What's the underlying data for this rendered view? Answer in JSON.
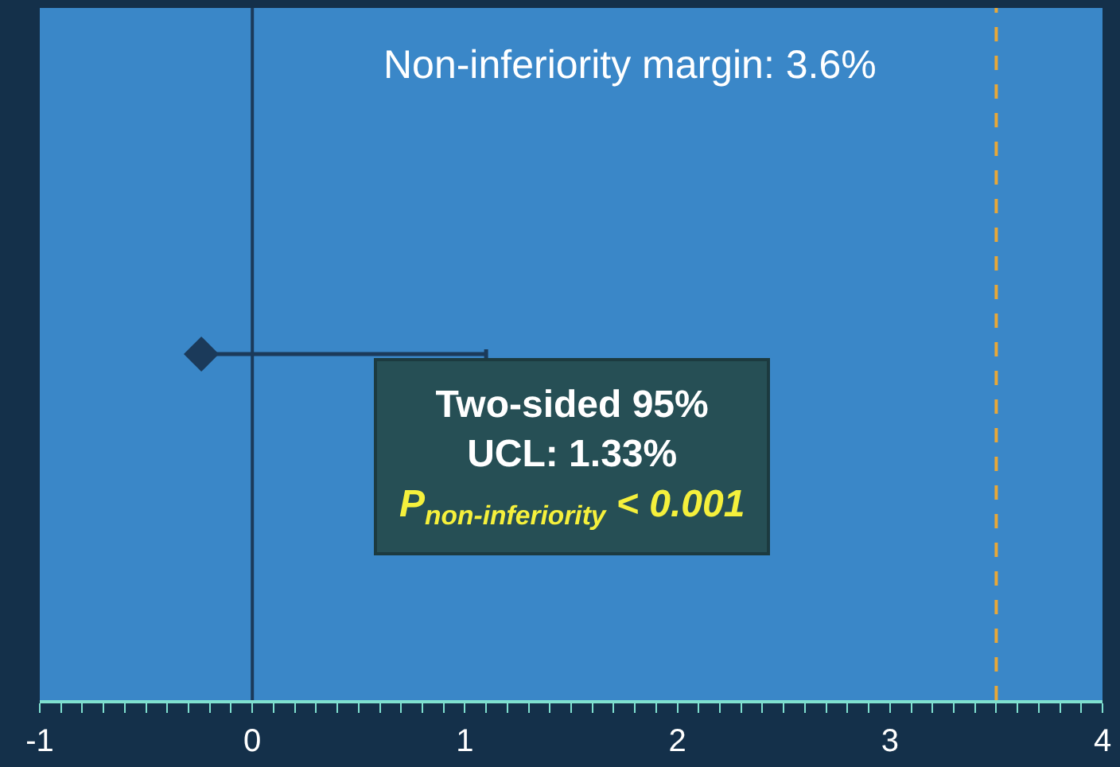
{
  "chart_data": {
    "type": "scatter",
    "categories": [
      null
    ],
    "orientation": "horizontal",
    "series": [
      {
        "color": "#1b3a5a",
        "values": [
          -0.24
        ],
        "errors": [
          [
            -0.24,
            1.1
          ]
        ]
      }
    ],
    "xlim": [
      -1,
      4
    ],
    "xticks": [
      -1,
      {
        "value": -0.9,
        "label": null
      },
      {
        "value": -0.8,
        "label": null
      },
      {
        "value": -0.7,
        "label": null
      },
      {
        "value": -0.6,
        "label": null
      },
      {
        "value": -0.5,
        "label": null
      },
      {
        "value": -0.4,
        "label": null
      },
      {
        "value": -0.3,
        "label": null
      },
      {
        "value": -0.2,
        "label": null
      },
      {
        "value": -0.1,
        "label": null
      },
      0,
      {
        "value": 0.1,
        "label": null
      },
      {
        "value": 0.2,
        "label": null
      },
      {
        "value": 0.3,
        "label": null
      },
      {
        "value": 0.4,
        "label": null
      },
      {
        "value": 0.5,
        "label": null
      },
      {
        "value": 0.6,
        "label": null
      },
      {
        "value": 0.7,
        "label": null
      },
      {
        "value": 0.8,
        "label": null
      },
      {
        "value": 0.9,
        "label": null
      },
      1,
      {
        "value": 1.1,
        "label": null
      },
      {
        "value": 1.2,
        "label": null
      },
      {
        "value": 1.3,
        "label": null
      },
      {
        "value": 1.4,
        "label": null
      },
      {
        "value": 1.5,
        "label": null
      },
      {
        "value": 1.6,
        "label": null
      },
      {
        "value": 1.7,
        "label": null
      },
      {
        "value": 1.8,
        "label": null
      },
      {
        "value": 1.9,
        "label": null
      },
      2,
      {
        "value": 2.1,
        "label": null
      },
      {
        "value": 2.2,
        "label": null
      },
      {
        "value": 2.3,
        "label": null
      },
      {
        "value": 2.4,
        "label": null
      },
      {
        "value": 2.5,
        "label": null
      },
      {
        "value": 2.6,
        "label": null
      },
      {
        "value": 2.7,
        "label": null
      },
      {
        "value": 2.8,
        "label": null
      },
      {
        "value": 2.9,
        "label": null
      },
      3,
      {
        "value": 3.1,
        "label": null
      },
      {
        "value": 3.2,
        "label": null
      },
      {
        "value": 3.3,
        "label": null
      },
      {
        "value": 3.4,
        "label": null
      },
      {
        "value": 3.5,
        "label": null
      },
      {
        "value": 3.6,
        "label": null
      },
      {
        "value": 3.7,
        "label": null
      },
      {
        "value": 3.8,
        "label": null
      },
      {
        "value": 3.9,
        "label": null
      },
      4
    ],
    "ref_lines": [
      {
        "axis": "x",
        "value": 0,
        "color": "#1b3a5a",
        "line_style": "solid"
      },
      {
        "axis": "x",
        "value": 3.5,
        "color": "#e8a838",
        "line_style": "dashed"
      }
    ],
    "annotations": [
      "Non-inferiority margin: 3.6%",
      "Two-sided 95%",
      "UCL: 1.33%",
      "P$_{non-inferiority}$ < 0.001"
    ],
    "marker": "diamond",
    "grid": false,
    "tick_labels": "x"
  }
}
